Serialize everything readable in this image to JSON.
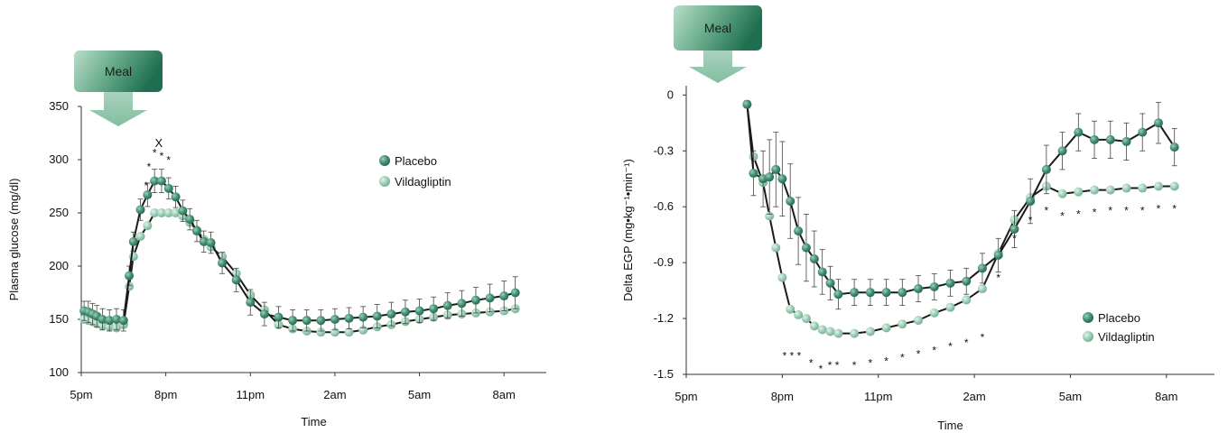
{
  "chart_data": [
    {
      "type": "line",
      "meal_label": "Meal",
      "xlabel": "Time",
      "ylabel": "Plasma glucose (mg/dl)",
      "ylim": [
        100,
        350
      ],
      "y_ticks": [
        100,
        150,
        200,
        250,
        300,
        350
      ],
      "xlim": [
        17,
        33.5
      ],
      "x_ticks": [
        {
          "value": 17,
          "label": "5pm"
        },
        {
          "value": 20,
          "label": "8pm"
        },
        {
          "value": 23,
          "label": "11pm"
        },
        {
          "value": 26,
          "label": "2am"
        },
        {
          "value": 29,
          "label": "5am"
        },
        {
          "value": 32,
          "label": "8am"
        }
      ],
      "meal_time": 18.6,
      "legend_position": "right",
      "colors": {
        "Placebo": "#3f8a6e",
        "Vildagliptin": "#92c7ae"
      },
      "series": [
        {
          "name": "Placebo",
          "x": [
            17.1,
            17.25,
            17.4,
            17.55,
            17.75,
            18.0,
            18.25,
            18.5,
            18.7,
            18.85,
            19.1,
            19.35,
            19.6,
            19.85,
            20.1,
            20.35,
            20.6,
            20.85,
            21.1,
            21.35,
            21.6,
            22.0,
            22.5,
            23.0,
            23.5,
            24.0,
            24.5,
            25.0,
            25.5,
            26.0,
            26.5,
            27.0,
            27.5,
            28.0,
            28.5,
            29.0,
            29.5,
            30.0,
            30.5,
            31.0,
            31.5,
            32.0,
            32.4
          ],
          "y": [
            158,
            157,
            155,
            153,
            150,
            149,
            150,
            149,
            191,
            223,
            253,
            267,
            280,
            280,
            273,
            265,
            252,
            244,
            233,
            223,
            222,
            203,
            187,
            166,
            155,
            152,
            149,
            149,
            149,
            150,
            151,
            152,
            153,
            155,
            157,
            158,
            160,
            163,
            165,
            168,
            170,
            172,
            175
          ],
          "err": [
            9,
            10,
            10,
            10,
            10,
            10,
            10,
            10,
            9,
            9,
            10,
            11,
            11,
            11,
            10,
            10,
            10,
            10,
            10,
            10,
            10,
            10,
            11,
            12,
            11,
            10,
            10,
            10,
            10,
            10,
            10,
            10,
            11,
            11,
            11,
            11,
            11,
            12,
            12,
            12,
            13,
            14,
            15
          ]
        },
        {
          "name": "Vildagliptin",
          "x": [
            17.1,
            17.25,
            17.4,
            17.55,
            17.75,
            18.0,
            18.25,
            18.5,
            18.7,
            18.85,
            19.1,
            19.35,
            19.6,
            19.85,
            20.1,
            20.35,
            20.6,
            20.85,
            21.1,
            21.35,
            21.6,
            22.0,
            22.5,
            23.0,
            23.5,
            24.0,
            24.5,
            25.0,
            25.5,
            26.0,
            26.5,
            27.0,
            27.5,
            28.0,
            28.5,
            29.0,
            29.5,
            30.0,
            30.5,
            31.0,
            31.5,
            32.0,
            32.4
          ],
          "y": [
            150,
            149,
            148,
            146,
            144,
            143,
            142,
            145,
            181,
            209,
            228,
            238,
            250,
            250,
            250,
            250,
            247,
            241,
            234,
            225,
            218,
            209,
            193,
            173,
            159,
            145,
            141,
            139,
            138,
            138,
            138,
            140,
            143,
            145,
            148,
            150,
            152,
            154,
            155,
            156,
            157,
            158,
            160
          ]
        }
      ],
      "annotations": [
        {
          "text": "X",
          "x": 19.75,
          "y": 312
        },
        {
          "text": "*",
          "x": 19.6,
          "y": 303
        },
        {
          "text": "*",
          "x": 19.85,
          "y": 300
        },
        {
          "text": "*",
          "x": 20.1,
          "y": 296
        },
        {
          "text": "*",
          "x": 19.4,
          "y": 290
        },
        {
          "text": "*",
          "x": 19.3,
          "y": 272
        }
      ]
    },
    {
      "type": "line",
      "meal_label": "Meal",
      "xlabel": "Time",
      "ylabel": "Delta EGP (mg•kg⁻¹•min⁻¹)",
      "ylim": [
        -1.5,
        0.05
      ],
      "y_ticks": [
        {
          "value": 0,
          "label": "0"
        },
        {
          "value": -0.3,
          "label": "-0.3"
        },
        {
          "value": -0.6,
          "label": "-0.6"
        },
        {
          "value": -0.9,
          "label": "-0.9"
        },
        {
          "value": -1.2,
          "label": "-1.2"
        },
        {
          "value": -1.5,
          "label": "-1.5"
        }
      ],
      "xlim": [
        17,
        33.5
      ],
      "x_ticks": [
        {
          "value": 17,
          "label": "5pm"
        },
        {
          "value": 20,
          "label": "8pm"
        },
        {
          "value": 23,
          "label": "11pm"
        },
        {
          "value": 26,
          "label": "2am"
        },
        {
          "value": 29,
          "label": "5am"
        },
        {
          "value": 32,
          "label": "8am"
        }
      ],
      "meal_time": 18.4,
      "legend_position": "bottom-right",
      "colors": {
        "Placebo": "#3f8a6e",
        "Vildagliptin": "#92c7ae"
      },
      "series": [
        {
          "name": "Placebo",
          "x": [
            18.9,
            19.1,
            19.4,
            19.6,
            19.8,
            20.0,
            20.25,
            20.5,
            20.75,
            21.0,
            21.25,
            21.5,
            21.75,
            22.25,
            22.75,
            23.25,
            23.75,
            24.25,
            24.75,
            25.25,
            25.75,
            26.25,
            26.75,
            27.25,
            27.75,
            28.25,
            28.75,
            29.25,
            29.75,
            30.25,
            30.75,
            31.25,
            31.75,
            32.25
          ],
          "y": [
            -0.05,
            -0.42,
            -0.45,
            -0.44,
            -0.4,
            -0.45,
            -0.57,
            -0.73,
            -0.82,
            -0.88,
            -0.95,
            -1.01,
            -1.07,
            -1.06,
            -1.06,
            -1.06,
            -1.06,
            -1.04,
            -1.03,
            -1.01,
            -1.0,
            -0.93,
            -0.86,
            -0.72,
            -0.57,
            -0.4,
            -0.3,
            -0.2,
            -0.24,
            -0.24,
            -0.25,
            -0.2,
            -0.15,
            -0.28
          ],
          "err": [
            0.02,
            0.12,
            0.15,
            0.2,
            0.2,
            0.2,
            0.2,
            0.18,
            0.18,
            0.15,
            0.12,
            0.09,
            0.08,
            0.07,
            0.07,
            0.07,
            0.07,
            0.07,
            0.07,
            0.07,
            0.07,
            0.08,
            0.09,
            0.1,
            0.12,
            0.13,
            0.1,
            0.1,
            0.1,
            0.1,
            0.1,
            0.1,
            0.11,
            0.1
          ]
        },
        {
          "name": "Vildagliptin",
          "x": [
            18.9,
            19.1,
            19.4,
            19.6,
            19.8,
            20.0,
            20.25,
            20.5,
            20.75,
            21.0,
            21.25,
            21.5,
            21.75,
            22.25,
            22.75,
            23.25,
            23.75,
            24.25,
            24.75,
            25.25,
            25.75,
            26.25,
            26.75,
            27.25,
            27.75,
            28.25,
            28.75,
            29.25,
            29.75,
            30.25,
            30.75,
            31.25,
            31.75,
            32.25
          ],
          "y": [
            -0.05,
            -0.33,
            -0.47,
            -0.65,
            -0.82,
            -0.98,
            -1.15,
            -1.18,
            -1.2,
            -1.24,
            -1.26,
            -1.27,
            -1.28,
            -1.28,
            -1.27,
            -1.25,
            -1.23,
            -1.21,
            -1.17,
            -1.14,
            -1.1,
            -1.04,
            -0.85,
            -0.67,
            -0.55,
            -0.49,
            -0.53,
            -0.52,
            -0.51,
            -0.51,
            -0.5,
            -0.5,
            -0.49,
            -0.49
          ]
        }
      ],
      "annotations": [
        {
          "text": "* * *",
          "x": 20.3,
          "y": -1.42
        },
        {
          "text": "*",
          "x": 20.9,
          "y": -1.46
        },
        {
          "text": "*",
          "x": 21.2,
          "y": -1.49
        },
        {
          "text": "* *",
          "x": 21.6,
          "y": -1.47
        },
        {
          "text": "*",
          "x": 22.25,
          "y": -1.47
        },
        {
          "text": "*",
          "x": 22.75,
          "y": -1.46
        },
        {
          "text": "*",
          "x": 23.25,
          "y": -1.45
        },
        {
          "text": "*",
          "x": 23.75,
          "y": -1.43
        },
        {
          "text": "*",
          "x": 24.25,
          "y": -1.41
        },
        {
          "text": "*",
          "x": 24.75,
          "y": -1.39
        },
        {
          "text": "*",
          "x": 25.25,
          "y": -1.37
        },
        {
          "text": "*",
          "x": 25.75,
          "y": -1.35
        },
        {
          "text": "*",
          "x": 26.25,
          "y": -1.32
        },
        {
          "text": "*",
          "x": 26.75,
          "y": -1.0
        },
        {
          "text": "*",
          "x": 27.25,
          "y": -0.79
        },
        {
          "text": "*",
          "x": 27.75,
          "y": -0.69
        },
        {
          "text": "*",
          "x": 28.25,
          "y": -0.64
        },
        {
          "text": "*",
          "x": 28.75,
          "y": -0.67
        },
        {
          "text": "*",
          "x": 29.25,
          "y": -0.66
        },
        {
          "text": "*",
          "x": 29.75,
          "y": -0.65
        },
        {
          "text": "*",
          "x": 30.25,
          "y": -0.64
        },
        {
          "text": "*",
          "x": 30.75,
          "y": -0.64
        },
        {
          "text": "*",
          "x": 31.25,
          "y": -0.64
        },
        {
          "text": "*",
          "x": 31.75,
          "y": -0.63
        },
        {
          "text": "*",
          "x": 32.25,
          "y": -0.63
        }
      ]
    }
  ]
}
